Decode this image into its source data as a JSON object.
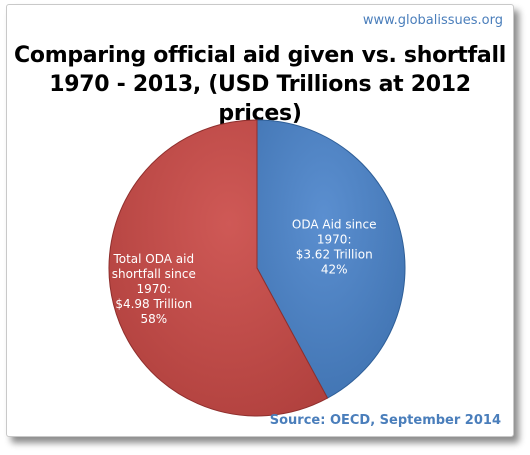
{
  "header": {
    "site": "www.globalissues.org"
  },
  "chart_data": {
    "type": "pie",
    "title_line1": "Comparing official aid given vs. shortfall",
    "title_line2": "1970 - 2013, (USD Trillions at 2012 prices)",
    "slices": [
      {
        "label_lines": [
          "ODA Aid since",
          "1970:",
          "$3.62 Trillion",
          "42%"
        ],
        "value": 3.62,
        "percent": 42,
        "color": "#4a7ebb",
        "edge_color": "#2f5f98"
      },
      {
        "label_lines": [
          "Total ODA aid",
          "shortfall since",
          "1970:",
          "$4.98 Trillion",
          "58%"
        ],
        "value": 4.98,
        "percent": 58,
        "color": "#be4b48",
        "edge_color": "#8f2f2d"
      }
    ]
  },
  "footer": {
    "source": "Source: OECD, September 2014"
  },
  "colors": {
    "accent": "#4a7ebb"
  }
}
